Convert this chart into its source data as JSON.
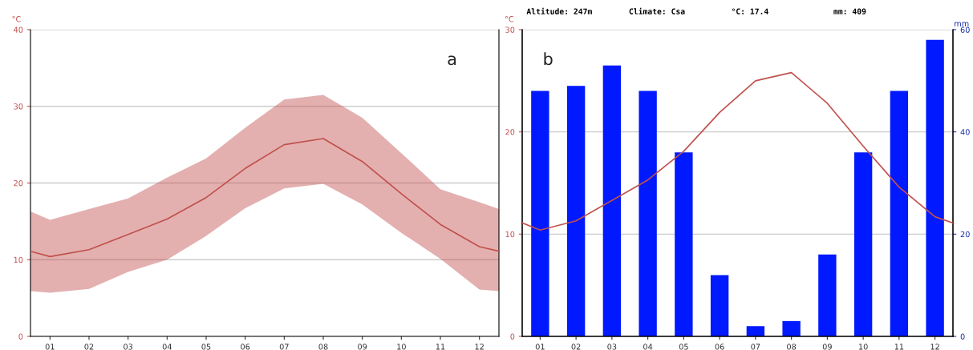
{
  "chart_data": [
    {
      "type": "line",
      "ylabel": "°C",
      "annotations": [
        "a"
      ],
      "xlim": [
        0.5,
        12.5
      ],
      "xticks": [
        {
          "value": 1,
          "label": "01"
        },
        {
          "value": 2,
          "label": "02"
        },
        {
          "value": 3,
          "label": "03"
        },
        {
          "value": 4,
          "label": "04"
        },
        {
          "value": 5,
          "label": "05"
        },
        {
          "value": 6,
          "label": "06"
        },
        {
          "value": 7,
          "label": "07"
        },
        {
          "value": 8,
          "label": "08"
        },
        {
          "value": 9,
          "label": "09"
        },
        {
          "value": 10,
          "label": "10"
        },
        {
          "value": 11,
          "label": "11"
        },
        {
          "value": 12,
          "label": "12"
        }
      ],
      "ylim": [
        0,
        40
      ],
      "yticks": [
        0,
        10,
        20,
        30,
        40
      ],
      "grid": "y",
      "marker": "none",
      "line_style": "solid",
      "x": [
        0.5,
        1,
        2,
        3,
        4,
        5,
        6,
        7,
        8,
        9,
        10,
        11,
        12,
        12.5
      ],
      "series": [
        {
          "color": "#c0504d",
          "values": [
            11.1,
            10.4,
            11.3,
            13.3,
            15.3,
            18.1,
            21.9,
            25.0,
            25.8,
            22.8,
            18.6,
            14.6,
            11.7,
            11.1
          ],
          "lower": [
            5.9,
            5.7,
            6.2,
            8.4,
            10.0,
            13.1,
            16.7,
            19.3,
            19.9,
            17.2,
            13.5,
            10.1,
            6.1,
            5.9
          ],
          "upper": [
            16.3,
            15.2,
            16.6,
            18.0,
            20.7,
            23.2,
            27.2,
            30.9,
            31.5,
            28.5,
            23.9,
            19.2,
            17.5,
            16.6
          ]
        }
      ]
    },
    {
      "type": "bar",
      "ylabel": "°C",
      "y2label": "mm",
      "annotations": [
        "b",
        "Altitude: 247m",
        "Climate: Csa",
        "°C: 17.4",
        "mm: 409"
      ],
      "xlim": [
        0.5,
        12.5
      ],
      "xticks": [
        {
          "value": 1,
          "label": "01"
        },
        {
          "value": 2,
          "label": "02"
        },
        {
          "value": 3,
          "label": "03"
        },
        {
          "value": 4,
          "label": "04"
        },
        {
          "value": 5,
          "label": "05"
        },
        {
          "value": 6,
          "label": "06"
        },
        {
          "value": 7,
          "label": "07"
        },
        {
          "value": 8,
          "label": "08"
        },
        {
          "value": 9,
          "label": "09"
        },
        {
          "value": 10,
          "label": "10"
        },
        {
          "value": 11,
          "label": "11"
        },
        {
          "value": 12,
          "label": "12"
        }
      ],
      "ylim": [
        0,
        30
      ],
      "yticks": [
        0,
        10,
        20,
        30
      ],
      "y2lim": [
        0,
        60
      ],
      "y2ticks": [
        0,
        20,
        40,
        60
      ],
      "grid": "y",
      "marker": "none",
      "line_style": "solid",
      "series": [
        {
          "type": "bar",
          "axis": "y2",
          "color": "#0019ff",
          "x": [
            1,
            2,
            3,
            4,
            5,
            6,
            7,
            8,
            9,
            10,
            11,
            12
          ],
          "values": [
            48,
            49,
            53,
            48,
            36,
            12,
            2,
            3,
            16,
            36,
            48,
            58
          ]
        },
        {
          "type": "line",
          "axis": "y",
          "color": "#c0504d",
          "x": [
            0.5,
            1,
            2,
            3,
            4,
            5,
            6,
            7,
            8,
            9,
            10,
            11,
            12,
            12.5
          ],
          "values": [
            11.1,
            10.4,
            11.3,
            13.3,
            15.3,
            18.1,
            21.9,
            25.0,
            25.8,
            22.8,
            18.6,
            14.6,
            11.7,
            11.1
          ]
        }
      ]
    }
  ]
}
